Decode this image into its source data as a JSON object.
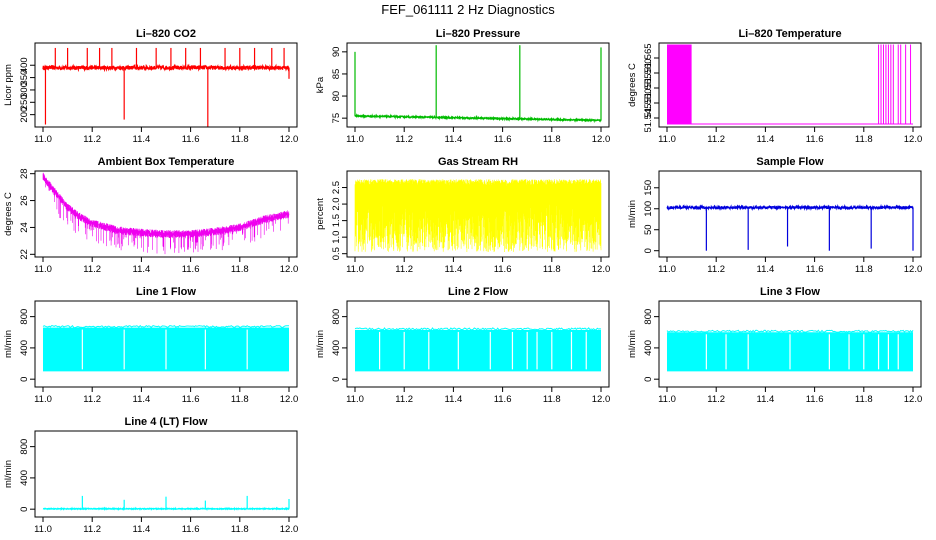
{
  "figure": {
    "title": "FEF_061111  2 Hz Diagnostics"
  },
  "chart_data": [
    {
      "type": "line",
      "title": "Li–820 CO2",
      "ylabel": "Licor ppm",
      "xlim": [
        11.0,
        12.0
      ],
      "ylim": [
        150,
        490
      ],
      "x_ticks": [
        "11.0",
        "11.2",
        "11.4",
        "11.6",
        "11.8",
        "12.0"
      ],
      "y_ticks": [
        "200",
        "250",
        "300",
        "350",
        "400"
      ],
      "y_tick_values": [
        200,
        250,
        300,
        350,
        400
      ],
      "color": "#ff0000",
      "baseline": 390,
      "noise": 8,
      "spikes_up": [
        [
          11.05,
          470
        ],
        [
          11.1,
          470
        ],
        [
          11.18,
          470
        ],
        [
          11.23,
          470
        ],
        [
          11.28,
          470
        ],
        [
          11.38,
          470
        ],
        [
          11.46,
          470
        ],
        [
          11.52,
          470
        ],
        [
          11.58,
          470
        ],
        [
          11.64,
          470
        ],
        [
          11.74,
          470
        ],
        [
          11.8,
          470
        ],
        [
          11.86,
          470
        ],
        [
          11.93,
          470
        ],
        [
          11.98,
          470
        ]
      ],
      "spikes_down": [
        [
          11.01,
          160
        ],
        [
          11.33,
          180
        ],
        [
          11.67,
          150
        ],
        [
          12.0,
          345
        ]
      ]
    },
    {
      "type": "line",
      "title": "Li–820 Pressure",
      "ylabel": "kPa",
      "xlim": [
        11.0,
        12.0
      ],
      "ylim": [
        73,
        92
      ],
      "x_ticks": [
        "11.0",
        "11.2",
        "11.4",
        "11.6",
        "11.8",
        "12.0"
      ],
      "y_ticks": [
        "75",
        "80",
        "85",
        "90"
      ],
      "y_tick_values": [
        75,
        80,
        85,
        90
      ],
      "color": "#00bb00",
      "baseline_start": 75.5,
      "baseline_end": 74.5,
      "noise": 0.15,
      "spikes_up": [
        [
          11.0,
          90
        ],
        [
          11.33,
          91.5
        ],
        [
          11.67,
          91.5
        ],
        [
          12.0,
          91
        ]
      ]
    },
    {
      "type": "line",
      "title": "Li–820 Temperature",
      "ylabel": "degrees C",
      "xlim": [
        11.0,
        12.0
      ],
      "ylim": [
        51.542,
        51.57
      ],
      "x_ticks": [
        "11.0",
        "11.2",
        "11.4",
        "11.6",
        "11.8",
        "12.0"
      ],
      "y_ticks": [
        "51.545",
        "51.550",
        "51.555",
        "51.560",
        "51.565"
      ],
      "y_tick_values": [
        51.545,
        51.55,
        51.555,
        51.56,
        51.565
      ],
      "color": "#ff00ff",
      "baseline": 51.543,
      "high": 51.5695,
      "blocks": [
        [
          11.0,
          11.1
        ]
      ],
      "bars": [
        11.86,
        11.87,
        11.88,
        11.89,
        11.9,
        11.91,
        11.92,
        11.94,
        11.95,
        11.97,
        11.99
      ]
    },
    {
      "type": "line",
      "title": "Ambient Box Temperature",
      "ylabel": "degrees C",
      "xlim": [
        11.0,
        12.0
      ],
      "ylim": [
        21.8,
        28.2
      ],
      "x_ticks": [
        "11.0",
        "11.2",
        "11.4",
        "11.6",
        "11.8",
        "12.0"
      ],
      "y_ticks": [
        "22",
        "24",
        "26",
        "28"
      ],
      "y_tick_values": [
        22,
        24,
        26,
        28
      ],
      "color": "#ee00ee",
      "curve": [
        [
          11.0,
          27.8
        ],
        [
          11.05,
          26.6
        ],
        [
          11.1,
          25.5
        ],
        [
          11.15,
          24.8
        ],
        [
          11.2,
          24.3
        ],
        [
          11.3,
          23.8
        ],
        [
          11.4,
          23.6
        ],
        [
          11.5,
          23.5
        ],
        [
          11.6,
          23.5
        ],
        [
          11.7,
          23.7
        ],
        [
          11.8,
          24.0
        ],
        [
          11.9,
          24.6
        ],
        [
          12.0,
          25.0
        ]
      ],
      "noise": 0.3,
      "dip": 1.5
    },
    {
      "type": "line",
      "title": "Gas Stream RH",
      "ylabel": "percent",
      "xlim": [
        11.0,
        12.0
      ],
      "ylim": [
        0.4,
        3.0
      ],
      "x_ticks": [
        "11.0",
        "11.2",
        "11.4",
        "11.6",
        "11.8",
        "12.0"
      ],
      "y_ticks": [
        "0.5",
        "1.0",
        "1.5",
        "2.0",
        "2.5"
      ],
      "y_tick_values": [
        0.5,
        1.0,
        1.5,
        2.0,
        2.5
      ],
      "color": "#ffff00",
      "high": 2.75,
      "low": 0.55
    },
    {
      "type": "line",
      "title": "Sample Flow",
      "ylabel": "ml/min",
      "xlim": [
        11.0,
        12.0
      ],
      "ylim": [
        -15,
        190
      ],
      "x_ticks": [
        "11.0",
        "11.2",
        "11.4",
        "11.6",
        "11.8",
        "12.0"
      ],
      "y_ticks": [
        "0",
        "50",
        "100",
        "150"
      ],
      "y_tick_values": [
        0,
        50,
        100,
        150
      ],
      "color": "#0000dd",
      "baseline": 103,
      "noise": 3,
      "spikes_down": [
        [
          11.16,
          0
        ],
        [
          11.33,
          2
        ],
        [
          11.49,
          10
        ],
        [
          11.66,
          0
        ],
        [
          11.83,
          5
        ],
        [
          12.0,
          0
        ]
      ]
    },
    {
      "type": "line",
      "title": "Line 1 Flow",
      "ylabel": "ml/min",
      "xlim": [
        11.0,
        12.0
      ],
      "ylim": [
        -100,
        1000
      ],
      "x_ticks": [
        "11.0",
        "11.2",
        "11.4",
        "11.6",
        "11.8",
        "12.0"
      ],
      "y_ticks": [
        "0",
        "400",
        "800"
      ],
      "y_tick_values": [
        0,
        400,
        800
      ],
      "color": "#00ffff",
      "high": 660,
      "low": 100,
      "gaps": [
        11.16,
        11.33,
        11.5,
        11.66,
        11.83
      ]
    },
    {
      "type": "line",
      "title": "Line 2 Flow",
      "ylabel": "ml/min",
      "xlim": [
        11.0,
        12.0
      ],
      "ylim": [
        -100,
        1000
      ],
      "x_ticks": [
        "11.0",
        "11.2",
        "11.4",
        "11.6",
        "11.8",
        "12.0"
      ],
      "y_ticks": [
        "0",
        "400",
        "800"
      ],
      "y_tick_values": [
        0,
        400,
        800
      ],
      "color": "#00ffff",
      "high": 630,
      "low": 100,
      "gaps": [
        11.1,
        11.2,
        11.3,
        11.42,
        11.55,
        11.64,
        11.7,
        11.74,
        11.8,
        11.88,
        11.94
      ]
    },
    {
      "type": "line",
      "title": "Line 3 Flow",
      "ylabel": "ml/min",
      "xlim": [
        11.0,
        12.0
      ],
      "ylim": [
        -100,
        1000
      ],
      "x_ticks": [
        "11.0",
        "11.2",
        "11.4",
        "11.6",
        "11.8",
        "12.0"
      ],
      "y_ticks": [
        "0",
        "400",
        "800"
      ],
      "y_tick_values": [
        0,
        400,
        800
      ],
      "color": "#00ffff",
      "high": 600,
      "low": 100,
      "gaps": [
        11.16,
        11.24,
        11.33,
        11.5,
        11.66,
        11.74,
        11.8,
        11.86,
        11.9,
        11.94
      ]
    },
    {
      "type": "line",
      "title": "Line 4 (LT) Flow",
      "ylabel": "ml/min",
      "xlim": [
        11.0,
        12.0
      ],
      "ylim": [
        -100,
        1000
      ],
      "x_ticks": [
        "11.0",
        "11.2",
        "11.4",
        "11.6",
        "11.8",
        "12.0"
      ],
      "y_ticks": [
        "0",
        "400",
        "800"
      ],
      "y_tick_values": [
        0,
        400,
        800
      ],
      "color": "#00ffff",
      "baseline": 5,
      "noise": 5,
      "spikes_up": [
        [
          11.16,
          170
        ],
        [
          11.33,
          120
        ],
        [
          11.5,
          160
        ],
        [
          11.66,
          110
        ],
        [
          11.83,
          170
        ],
        [
          12.0,
          130
        ]
      ]
    }
  ]
}
